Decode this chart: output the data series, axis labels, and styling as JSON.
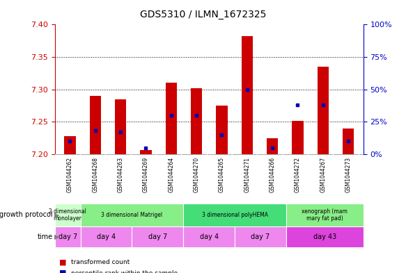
{
  "title": "GDS5310 / ILMN_1672325",
  "samples": [
    "GSM1044262",
    "GSM1044268",
    "GSM1044263",
    "GSM1044269",
    "GSM1044264",
    "GSM1044270",
    "GSM1044265",
    "GSM1044271",
    "GSM1044266",
    "GSM1044272",
    "GSM1044267",
    "GSM1044273"
  ],
  "bar_base": 7.2,
  "transformed_counts": [
    7.228,
    7.29,
    7.285,
    7.207,
    7.31,
    7.302,
    7.275,
    7.382,
    7.225,
    7.251,
    7.335,
    7.24
  ],
  "percentile_ranks": [
    10,
    18,
    17,
    5,
    30,
    30,
    15,
    50,
    5,
    38,
    38,
    10
  ],
  "ylim_left": [
    7.2,
    7.4
  ],
  "ylim_right": [
    0,
    100
  ],
  "yticks_left": [
    7.2,
    7.25,
    7.3,
    7.35,
    7.4
  ],
  "yticks_right": [
    0,
    25,
    50,
    75,
    100
  ],
  "bar_color": "#cc0000",
  "percentile_color": "#0000bb",
  "groups": [
    {
      "label": "2 dimensional\nmonolayer",
      "start": 0,
      "end": 1,
      "color": "#ccffcc"
    },
    {
      "label": "3 dimensional Matrigel",
      "start": 1,
      "end": 5,
      "color": "#88ee88"
    },
    {
      "label": "3 dimensional polyHEMA",
      "start": 5,
      "end": 9,
      "color": "#44dd77"
    },
    {
      "label": "xenograph (mam\nmary fat pad)",
      "start": 9,
      "end": 12,
      "color": "#88ee88"
    }
  ],
  "time_groups": [
    {
      "label": "day 7",
      "start": 0,
      "end": 1,
      "color": "#ee88ee"
    },
    {
      "label": "day 4",
      "start": 1,
      "end": 3,
      "color": "#ee88ee"
    },
    {
      "label": "day 7",
      "start": 3,
      "end": 5,
      "color": "#ee88ee"
    },
    {
      "label": "day 4",
      "start": 5,
      "end": 7,
      "color": "#ee88ee"
    },
    {
      "label": "day 7",
      "start": 7,
      "end": 9,
      "color": "#ee88ee"
    },
    {
      "label": "day 43",
      "start": 9,
      "end": 12,
      "color": "#dd44dd"
    }
  ],
  "bg_color": "#ffffff",
  "sample_bg_color": "#cccccc",
  "left_axis_color": "#cc0000",
  "right_axis_color": "#0000cc",
  "fig_width": 5.83,
  "fig_height": 3.93,
  "dpi": 100
}
